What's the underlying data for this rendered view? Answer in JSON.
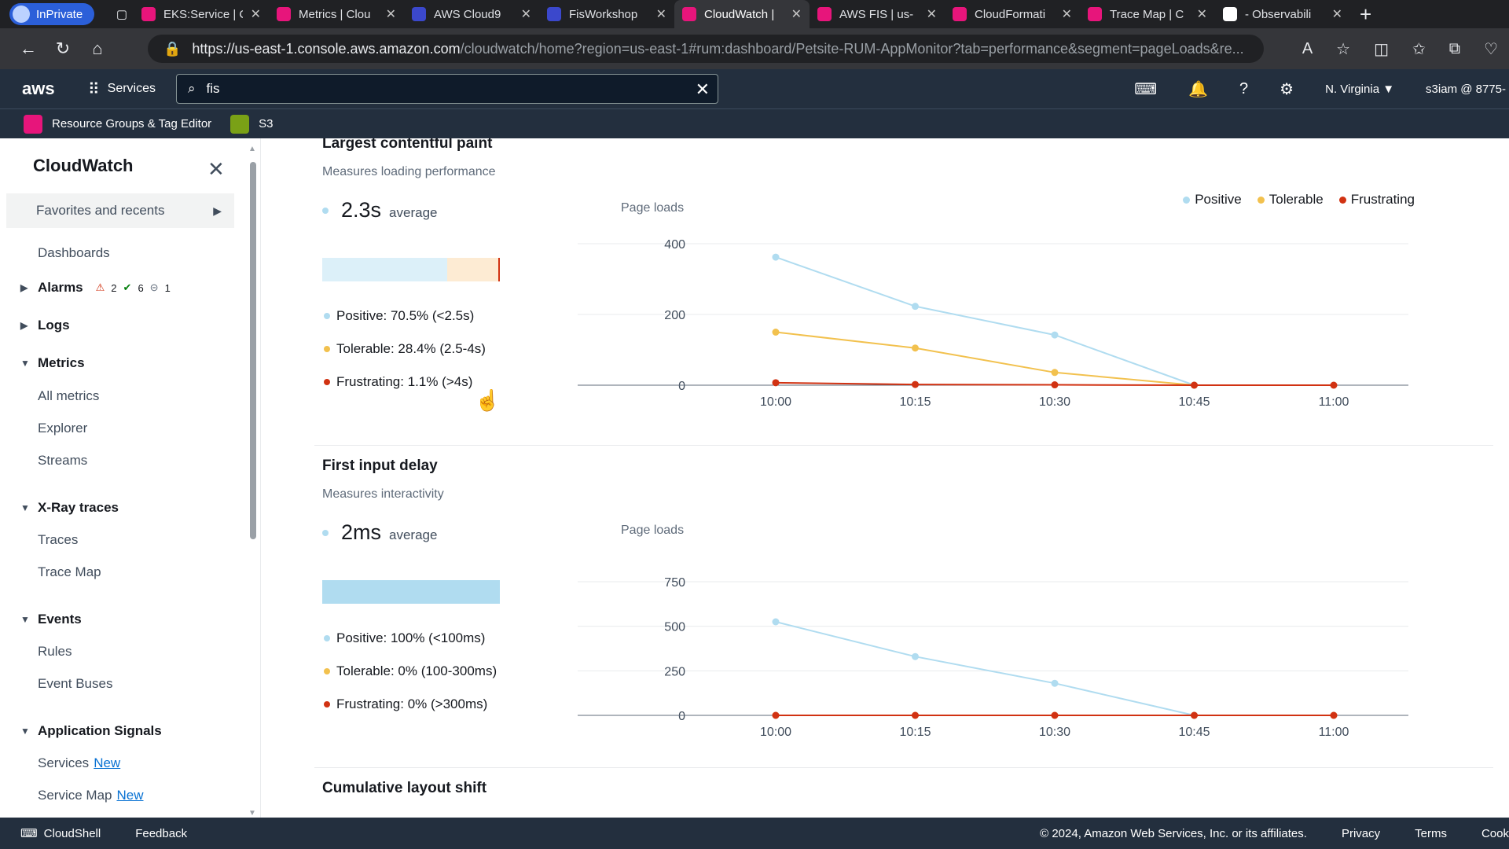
{
  "browser": {
    "inprivate_label": "InPrivate",
    "tabs": [
      {
        "title": "EKS:Service | C",
        "color": "#e7157b"
      },
      {
        "title": "Metrics | Clou",
        "color": "#e7157b"
      },
      {
        "title": "AWS Cloud9",
        "color": "#3b48cc"
      },
      {
        "title": "FisWorkshop",
        "color": "#3b48cc"
      },
      {
        "title": "CloudWatch |",
        "color": "#e7157b"
      },
      {
        "title": "AWS FIS | us-",
        "color": "#e7157b"
      },
      {
        "title": "CloudFormati",
        "color": "#e7157b"
      },
      {
        "title": "Trace Map | C",
        "color": "#e7157b"
      },
      {
        "title": "- Observabili",
        "color": "#ffffff"
      }
    ],
    "url_host": "https://us-east-1.console.aws.amazon.com",
    "url_path": "/cloudwatch/home?region=us-east-1#rum:dashboard/Petsite-RUM-AppMonitor?tab=performance&segment=pageLoads&re..."
  },
  "aws_nav": {
    "logo": "aws",
    "services_label": "Services",
    "search_value": "fis",
    "region": "N. Virginia ▼",
    "account": "s3iam @ 8775-"
  },
  "favorites_bar": [
    {
      "label": "Resource Groups & Tag Editor",
      "color": "#e7157b"
    },
    {
      "label": "S3",
      "color": "#7aa116"
    }
  ],
  "sidebar": {
    "title": "CloudWatch",
    "favorites": "Favorites and recents",
    "dashboards": "Dashboards",
    "alarms": "Alarms",
    "alarm_counts": {
      "alarm": "2",
      "ok": "6",
      "insufficient": "1"
    },
    "logs": "Logs",
    "metrics": "Metrics",
    "metrics_items": [
      "All metrics",
      "Explorer",
      "Streams"
    ],
    "xray": "X-Ray traces",
    "xray_items": [
      "Traces",
      "Trace Map"
    ],
    "events": "Events",
    "events_items": [
      "Rules",
      "Event Buses"
    ],
    "appsignals": "Application Signals",
    "appsignals_items": [
      {
        "label": "Services",
        "badge": "New"
      },
      {
        "label": "Service Map",
        "badge": "New"
      }
    ]
  },
  "colors": {
    "positive": "#b0dcf0",
    "tolerable": "#f2c14e",
    "frustrating": "#d13212"
  },
  "lcp": {
    "title": "Largest contentful paint",
    "subtitle": "Measures loading performance",
    "avg_value": "2.3s",
    "avg_unit": "average",
    "positive": "Positive: 70.5% (<2.5s)",
    "tolerable": "Tolerable: 28.4% (2.5-4s)",
    "frustrating": "Frustrating: 1.1% (>4s)",
    "shares": {
      "positive": 70.5,
      "tolerable": 28.4,
      "frustrating": 1.1
    },
    "ylabel": "Page loads"
  },
  "fid": {
    "title": "First input delay",
    "subtitle": "Measures interactivity",
    "avg_value": "2ms",
    "avg_unit": "average",
    "positive": "Positive: 100% (<100ms)",
    "tolerable": "Tolerable: 0% (100-300ms)",
    "frustrating": "Frustrating: 0% (>300ms)",
    "shares": {
      "positive": 100,
      "tolerable": 0,
      "frustrating": 0
    },
    "ylabel": "Page loads"
  },
  "cls": {
    "title": "Cumulative layout shift"
  },
  "legend": {
    "positive": "Positive",
    "tolerable": "Tolerable",
    "frustrating": "Frustrating"
  },
  "chart_data": [
    {
      "type": "line",
      "ylabel": "Page loads",
      "x": [
        "10:00",
        "10:15",
        "10:30",
        "10:45",
        "11:00"
      ],
      "yticks": [
        0,
        200,
        400
      ],
      "ylim": [
        0,
        400
      ],
      "series": [
        {
          "name": "Positive",
          "values": [
            362,
            223,
            142,
            0,
            null
          ]
        },
        {
          "name": "Tolerable",
          "values": [
            150,
            105,
            36,
            0,
            null
          ]
        },
        {
          "name": "Frustrating",
          "values": [
            7,
            2,
            1,
            0,
            0
          ]
        }
      ],
      "legend": "top-right"
    },
    {
      "type": "line",
      "ylabel": "Page loads",
      "x": [
        "10:00",
        "10:15",
        "10:30",
        "10:45",
        "11:00"
      ],
      "yticks": [
        0,
        250,
        500,
        750
      ],
      "ylim": [
        0,
        750
      ],
      "series": [
        {
          "name": "Positive",
          "values": [
            525,
            330,
            180,
            0,
            null
          ]
        },
        {
          "name": "Tolerable",
          "values": [
            0,
            0,
            0,
            0,
            0
          ]
        },
        {
          "name": "Frustrating",
          "values": [
            0,
            0,
            0,
            0,
            0
          ]
        }
      ]
    }
  ],
  "footer": {
    "cloudshell": "CloudShell",
    "feedback": "Feedback",
    "copyright": "© 2024, Amazon Web Services, Inc. or its affiliates.",
    "privacy": "Privacy",
    "terms": "Terms",
    "cookies": "Cook"
  }
}
